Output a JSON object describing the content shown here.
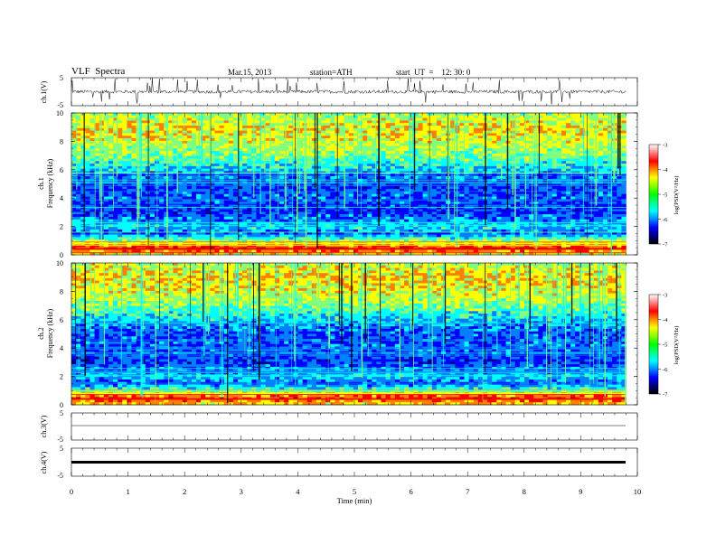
{
  "header": {
    "title": "VLF  Spectra",
    "date": "Mar.15, 2013",
    "station": "station=ATH",
    "start": "start  UT  =    12: 30: 0"
  },
  "chart_data": [
    {
      "type": "line",
      "panel": "ch1-waveform",
      "ylabel": "ch.1(V)",
      "yticks": [
        "5",
        "-5"
      ],
      "ylim": [
        -5,
        5
      ],
      "xlim": [
        0,
        10
      ],
      "data_extent_x": [
        0,
        9.8
      ],
      "baseline_level": 0,
      "description_values": {
        "typical_noise_amplitude_V": 1,
        "max_spike_V": 5
      }
    },
    {
      "type": "heatmap",
      "panel": "ch1-spectrogram",
      "ylabel_lines": [
        "ch.1",
        "Frequency  (kHz)"
      ],
      "yticks": [
        "0",
        "2",
        "4",
        "6",
        "8",
        "10"
      ],
      "ylim": [
        0,
        10
      ],
      "xlim": [
        0,
        10
      ],
      "data_extent_x": [
        0,
        9.8
      ],
      "colorbar": {
        "label": "log(PSD(V²/Hz)",
        "ticks": [
          "-3",
          "-4",
          "-5",
          "-6",
          "-7"
        ],
        "range": [
          -7,
          -3
        ]
      },
      "approx_logpsd_by_frequency_kHz": [
        [
          0.25,
          -4.2
        ],
        [
          0.5,
          -3.6
        ],
        [
          1.0,
          -5.0
        ],
        [
          1.5,
          -6.0
        ],
        [
          2.0,
          -5.5
        ],
        [
          3.0,
          -6.2
        ],
        [
          4.0,
          -6.0
        ],
        [
          5.0,
          -6.2
        ],
        [
          6.0,
          -5.6
        ],
        [
          7.0,
          -5.0
        ],
        [
          8.0,
          -4.7
        ],
        [
          9.0,
          -4.5
        ],
        [
          10.0,
          -4.9
        ]
      ]
    },
    {
      "type": "heatmap",
      "panel": "ch2-spectrogram",
      "ylabel_lines": [
        "ch.2",
        "Frequency  (kHz)"
      ],
      "yticks": [
        "0",
        "2",
        "4",
        "6",
        "8",
        "10"
      ],
      "ylim": [
        0,
        10
      ],
      "xlim": [
        0,
        10
      ],
      "data_extent_x": [
        0,
        9.8
      ],
      "colorbar": {
        "label": "log(PSD(V²/Hz)",
        "ticks": [
          "-3",
          "-4",
          "-5",
          "-6",
          "-7"
        ],
        "range": [
          -7,
          -3
        ]
      },
      "approx_logpsd_by_frequency_kHz": [
        [
          0.25,
          -4.1
        ],
        [
          0.5,
          -3.7
        ],
        [
          1.0,
          -5.1
        ],
        [
          1.5,
          -6.0
        ],
        [
          2.0,
          -5.6
        ],
        [
          3.0,
          -6.2
        ],
        [
          4.0,
          -6.0
        ],
        [
          5.0,
          -6.1
        ],
        [
          6.0,
          -5.6
        ],
        [
          7.0,
          -5.0
        ],
        [
          8.0,
          -4.6
        ],
        [
          9.0,
          -4.4
        ],
        [
          10.0,
          -4.8
        ]
      ]
    },
    {
      "type": "line",
      "panel": "ch3-waveform",
      "ylabel": "ch.3(V)",
      "yticks": [
        "5",
        "-5"
      ],
      "ylim": [
        -5,
        5
      ],
      "xlim": [
        0,
        10
      ],
      "data_extent_x": [
        0,
        9.8
      ],
      "baseline_level": 0
    },
    {
      "type": "line",
      "panel": "ch4-waveform",
      "ylabel": "ch.4(V)",
      "yticks": [
        "5",
        "-5"
      ],
      "ylim": [
        -5,
        5
      ],
      "xlim": [
        0,
        10
      ],
      "data_extent_x": [
        0,
        9.8
      ],
      "baseline_level": 0
    }
  ],
  "xaxis": {
    "label": "Time  (min)",
    "ticks": [
      "0",
      "1",
      "2",
      "3",
      "4",
      "5",
      "6",
      "7",
      "8",
      "9",
      "10"
    ]
  },
  "colors": {
    "jet": [
      "#00008f",
      "#0000ff",
      "#0080ff",
      "#00ffff",
      "#80ff80",
      "#ffff00",
      "#ff8000",
      "#ff0000",
      "#800000"
    ],
    "colorbar": [
      "#000000",
      "#00007f",
      "#0000ff",
      "#0088ff",
      "#00ffff",
      "#00ff88",
      "#00ff00",
      "#88ff00",
      "#ffff00",
      "#ff8800",
      "#ff0000",
      "#ff8080",
      "#ffffff"
    ],
    "trace": "#000000"
  }
}
